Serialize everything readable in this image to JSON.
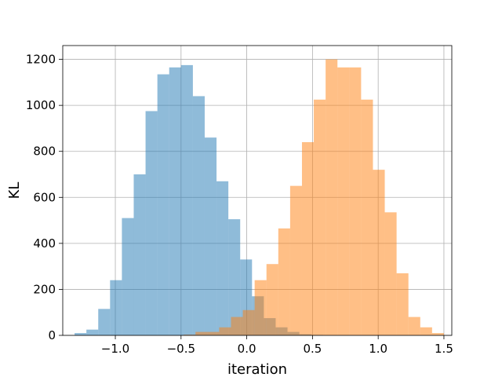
{
  "chart_data": {
    "type": "bar",
    "title": "",
    "xlabel": "iteration",
    "ylabel": "KL",
    "xlim": [
      -1.4,
      1.56
    ],
    "ylim": [
      0,
      1260
    ],
    "xticks": [
      -1.0,
      -0.5,
      0.0,
      0.5,
      1.0,
      1.5
    ],
    "xtick_labels": [
      "−1.0",
      "−0.5",
      "0.0",
      "0.5",
      "1.0",
      "1.5"
    ],
    "yticks": [
      0,
      200,
      400,
      600,
      800,
      1000,
      1200
    ],
    "ytick_labels": [
      "0",
      "200",
      "400",
      "600",
      "800",
      "1000",
      "1200"
    ],
    "grid": true,
    "legend": "none",
    "series": [
      {
        "color": "#1f77b4",
        "opacity": 0.5,
        "bins": [
          {
            "x0": -1.31,
            "x1": -1.22,
            "count": 10
          },
          {
            "x0": -1.22,
            "x1": -1.13,
            "count": 25
          },
          {
            "x0": -1.13,
            "x1": -1.04,
            "count": 115
          },
          {
            "x0": -1.04,
            "x1": -0.95,
            "count": 240
          },
          {
            "x0": -0.95,
            "x1": -0.86,
            "count": 510
          },
          {
            "x0": -0.86,
            "x1": -0.77,
            "count": 700
          },
          {
            "x0": -0.77,
            "x1": -0.68,
            "count": 975
          },
          {
            "x0": -0.68,
            "x1": -0.59,
            "count": 1135
          },
          {
            "x0": -0.59,
            "x1": -0.5,
            "count": 1165
          },
          {
            "x0": -0.5,
            "x1": -0.41,
            "count": 1175
          },
          {
            "x0": -0.41,
            "x1": -0.32,
            "count": 1040
          },
          {
            "x0": -0.32,
            "x1": -0.23,
            "count": 860
          },
          {
            "x0": -0.23,
            "x1": -0.14,
            "count": 670
          },
          {
            "x0": -0.14,
            "x1": -0.05,
            "count": 505
          },
          {
            "x0": -0.05,
            "x1": 0.04,
            "count": 330
          },
          {
            "x0": 0.04,
            "x1": 0.13,
            "count": 170
          },
          {
            "x0": 0.13,
            "x1": 0.22,
            "count": 75
          },
          {
            "x0": 0.22,
            "x1": 0.31,
            "count": 35
          },
          {
            "x0": 0.31,
            "x1": 0.4,
            "count": 15
          },
          {
            "x0": 0.4,
            "x1": 0.49,
            "count": 5
          },
          {
            "x0": 0.49,
            "x1": 0.58,
            "count": 2
          }
        ]
      },
      {
        "color": "#ff7f0e",
        "opacity": 0.5,
        "bins": [
          {
            "x0": -0.48,
            "x1": -0.39,
            "count": 3
          },
          {
            "x0": -0.39,
            "x1": -0.3,
            "count": 15
          },
          {
            "x0": -0.3,
            "x1": -0.21,
            "count": 15
          },
          {
            "x0": -0.21,
            "x1": -0.12,
            "count": 35
          },
          {
            "x0": -0.12,
            "x1": -0.03,
            "count": 80
          },
          {
            "x0": -0.03,
            "x1": 0.06,
            "count": 110
          },
          {
            "x0": 0.06,
            "x1": 0.15,
            "count": 240
          },
          {
            "x0": 0.15,
            "x1": 0.24,
            "count": 310
          },
          {
            "x0": 0.24,
            "x1": 0.33,
            "count": 465
          },
          {
            "x0": 0.33,
            "x1": 0.42,
            "count": 650
          },
          {
            "x0": 0.42,
            "x1": 0.51,
            "count": 840
          },
          {
            "x0": 0.51,
            "x1": 0.6,
            "count": 1025
          },
          {
            "x0": 0.6,
            "x1": 0.69,
            "count": 1200
          },
          {
            "x0": 0.69,
            "x1": 0.78,
            "count": 1165
          },
          {
            "x0": 0.78,
            "x1": 0.87,
            "count": 1165
          },
          {
            "x0": 0.87,
            "x1": 0.96,
            "count": 1025
          },
          {
            "x0": 0.96,
            "x1": 1.05,
            "count": 720
          },
          {
            "x0": 1.05,
            "x1": 1.14,
            "count": 535
          },
          {
            "x0": 1.14,
            "x1": 1.23,
            "count": 270
          },
          {
            "x0": 1.23,
            "x1": 1.32,
            "count": 80
          },
          {
            "x0": 1.32,
            "x1": 1.41,
            "count": 35
          },
          {
            "x0": 1.41,
            "x1": 1.5,
            "count": 10
          }
        ]
      }
    ]
  }
}
